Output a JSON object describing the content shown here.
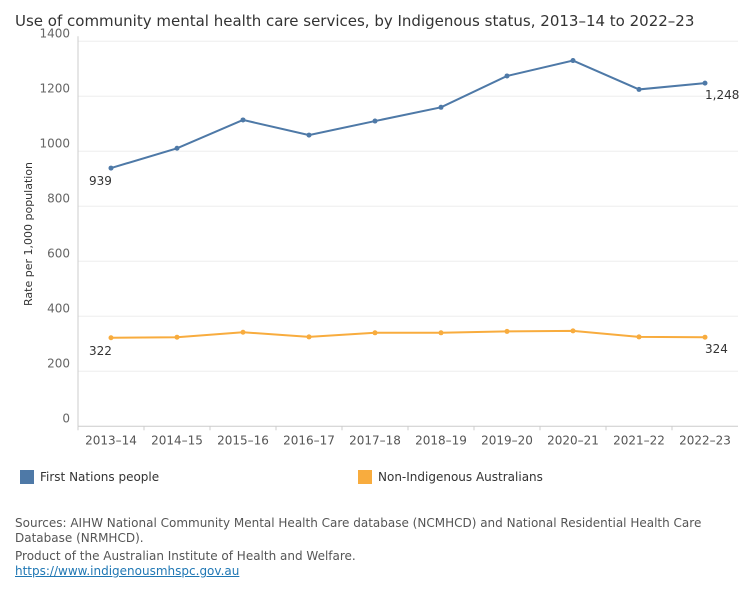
{
  "chart_data": {
    "type": "line",
    "title": "Use of community mental health care services, by Indigenous status, 2013–14 to 2022–23",
    "xlabel": "",
    "ylabel": "Rate per 1,000 population",
    "ylim": [
      0,
      1400
    ],
    "yticks": [
      0,
      200,
      400,
      600,
      800,
      1000,
      1200,
      1400
    ],
    "categories": [
      "2013–14",
      "2014–15",
      "2015–16",
      "2016–17",
      "2017–18",
      "2018–19",
      "2019–20",
      "2020–21",
      "2021–22",
      "2022–23"
    ],
    "series": [
      {
        "name": "First Nations people",
        "color": "#4e79a7",
        "values": [
          939,
          1011,
          1114,
          1059,
          1110,
          1160,
          1274,
          1330,
          1225,
          1248
        ],
        "labels": {
          "first": "939",
          "last": "1,248"
        }
      },
      {
        "name": "Non-Indigenous Australians",
        "color": "#f8ac3e",
        "values": [
          322,
          324,
          342,
          325,
          340,
          340,
          345,
          347,
          325,
          324
        ],
        "labels": {
          "first": "322",
          "last": "324"
        }
      }
    ],
    "grid": true,
    "legend": "bottom"
  },
  "footer": {
    "sources": "Sources: AIHW National Community Mental Health Care database (NCMHCD) and National Residential Health Care Database (NRMHCD).",
    "product": "Product of the Australian Institute of Health and Welfare.",
    "link": "https://www.indigenousmhspc.gov.au"
  }
}
